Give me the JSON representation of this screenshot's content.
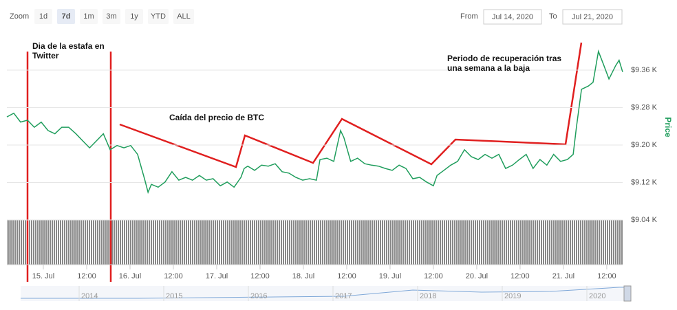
{
  "zoom_label": "Zoom",
  "range_buttons": [
    "1d",
    "7d",
    "1m",
    "3m",
    "1y",
    "YTD",
    "ALL"
  ],
  "selected_range": "7d",
  "from_label": "From",
  "from_date": "Jul 14, 2020",
  "to_label": "To",
  "to_date": "Jul 21, 2020",
  "navigator": {
    "years": [
      2014,
      2015,
      2016,
      2017,
      2018,
      2019,
      2020
    ]
  },
  "chart_data": {
    "type": "line",
    "y_axis_title": "Price",
    "annotations": [
      [
        "Dia de la estafa en",
        "Twitter"
      ],
      [
        "Caída del precio de BTC"
      ],
      [
        "Periodo de recuperación tras",
        "una semana a la baja"
      ]
    ],
    "xlim": [
      13.9,
      184.4
    ],
    "xticks": [
      {
        "value": 24,
        "label": "15. Jul"
      },
      {
        "value": 36,
        "label": "12:00"
      },
      {
        "value": 48,
        "label": "16. Jul"
      },
      {
        "value": 60,
        "label": "12:00"
      },
      {
        "value": 72,
        "label": "17. Jul"
      },
      {
        "value": 84,
        "label": "12:00"
      },
      {
        "value": 96,
        "label": "18. Jul"
      },
      {
        "value": 108,
        "label": "12:00"
      },
      {
        "value": 120,
        "label": "19. Jul"
      },
      {
        "value": 132,
        "label": "12:00"
      },
      {
        "value": 144,
        "label": "20. Jul"
      },
      {
        "value": 156,
        "label": "12:00"
      },
      {
        "value": 168,
        "label": "21. Jul"
      },
      {
        "value": 180,
        "label": "12:00"
      }
    ],
    "ylim": [
      9040,
      9430
    ],
    "yticks": [
      {
        "value": 9040,
        "label": "$9.04 K"
      },
      {
        "value": 9120,
        "label": "$9.12 K"
      },
      {
        "value": 9200,
        "label": "$9.20 K"
      },
      {
        "value": 9280,
        "label": "$9.28 K"
      },
      {
        "value": 9360,
        "label": "$9.36 K"
      }
    ],
    "grid": true,
    "series": [
      {
        "name": "Price",
        "color": "#1f9d5c",
        "x": [
          13.9,
          15.8,
          17.7,
          19.6,
          21.5,
          23.4,
          25.3,
          27.2,
          29.1,
          31.0,
          33.0,
          34.9,
          36.8,
          38.7,
          40.6,
          42.5,
          44.4,
          46.3,
          48.2,
          50.1,
          52.0,
          53.0,
          53.9,
          55.8,
          57.7,
          59.6,
          61.5,
          63.4,
          65.3,
          67.2,
          69.1,
          71.0,
          73.0,
          74.9,
          76.8,
          78.7,
          79.6,
          80.6,
          82.5,
          84.4,
          86.3,
          88.2,
          90.1,
          92.0,
          93.9,
          95.8,
          97.7,
          99.6,
          100.6,
          102.5,
          104.4,
          106.3,
          107.2,
          109.1,
          111.0,
          113.0,
          114.9,
          116.8,
          118.7,
          120.6,
          122.5,
          124.4,
          126.3,
          128.2,
          130.1,
          132.0,
          133.0,
          134.9,
          136.8,
          138.7,
          140.6,
          142.5,
          144.4,
          146.3,
          148.2,
          150.1,
          152.0,
          153.9,
          155.8,
          157.7,
          159.6,
          161.5,
          163.4,
          165.3,
          167.2,
          169.1,
          170.7,
          171.6,
          173.0,
          174.9,
          176.2,
          177.7,
          179.2,
          180.6,
          182.5,
          183.4,
          184.4
        ],
        "values": [
          9260,
          9268,
          9249,
          9253,
          9238,
          9249,
          9231,
          9224,
          9238,
          9238,
          9224,
          9209,
          9194,
          9209,
          9224,
          9190,
          9199,
          9194,
          9199,
          9180,
          9128,
          9099,
          9116,
          9110,
          9121,
          9143,
          9125,
          9131,
          9125,
          9135,
          9125,
          9128,
          9113,
          9121,
          9110,
          9131,
          9150,
          9155,
          9146,
          9157,
          9155,
          9160,
          9143,
          9140,
          9131,
          9125,
          9128,
          9125,
          9169,
          9172,
          9165,
          9231,
          9216,
          9165,
          9172,
          9160,
          9157,
          9155,
          9150,
          9146,
          9157,
          9150,
          9128,
          9131,
          9121,
          9113,
          9135,
          9146,
          9157,
          9165,
          9190,
          9175,
          9169,
          9180,
          9172,
          9180,
          9150,
          9157,
          9169,
          9180,
          9150,
          9169,
          9157,
          9180,
          9165,
          9169,
          9180,
          9238,
          9319,
          9326,
          9334,
          9400,
          9370,
          9341,
          9370,
          9381,
          9356
        ]
      }
    ]
  }
}
